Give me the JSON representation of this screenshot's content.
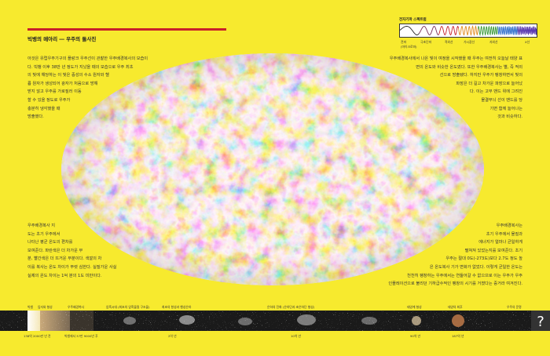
{
  "header": {
    "title": "빅뱅의 메아리 ― 우주의 돌사진"
  },
  "intro": {
    "lines": [
      "아것은 유럽우주기구의 플랑크 우주선이 관찰한 우주배경복사의 모습이",
      "다. 빅뱅 이후 38만 년 정도가 지났을 때의 모습으로 우주 최초",
      "의 빛에 해당하는 이 빛은 중성의 수소 원자와 헬",
      "륨 원자가 생성되어 광자가 처음으로 방해",
      "받지 않고 우주를 가로질러 이동",
      "할 수 있을 정도로 우주가",
      "충분히 냉각했을 때",
      "방출했다."
    ]
  },
  "right_top": {
    "lines": [
      "우주배경복사에서 나온 빛이 여정을 시작했을 때 우주는 여전히 오늘날 태양 표",
      "면의 온도와 비슷한 온도였다. 또한 우주배경복사는 별, 즉 적외",
      "선으로 방출됐다. 하지만 우주가 팽창하면서 빛의",
      "파장은 더 길고 차가운 파장으로 늘어났",
      "다. 이는 고무 밴드 위에 그려진",
      "물결무늬 선이 밴드를 당",
      "기면 함께 늘어나는",
      "것과 비슷하다."
    ]
  },
  "left_bottom": {
    "lines": [
      "우주배경복사 지",
      "도는 초기 우주에서",
      "나타난 평균 온도의 편차를",
      "보여준다. 파란색은 더 차가운 부",
      "분, 빨간색은 더 뜨거운 부분이다. 색깔의 차",
      "이를 복사는 온도 차이가 뚜렷 심한다. 실질가운 사실",
      "실제의 온도 차이는 1억 분의 1도 미만이다."
    ]
  },
  "right_bottom": {
    "lines": [
      "우주배경복사는",
      "초기 우주에서 물질과",
      "에너지가 얼마나 균일하게",
      "펼쳐져 있었는지를 보여준다. 초기",
      "우주는 절대 0도(-273도)보다 2.7도 정도 높",
      "은 온도복사 기가 변화가 없었다. 이렇게 균일한 온도는",
      "천천히 팽창하는 우주에서는 연들어갈 수 없으므로 이는 우주가 우주",
      "인플레이션으로 불리던 기하급수적인 팽창의 시기를 거쳤다는 증거라 여겨진다."
    ]
  },
  "spectrum": {
    "title": "전자기파 스펙트럼",
    "labels": [
      "전파",
      "극초단파",
      "적외선",
      "가시광선",
      "자외선",
      "X선"
    ],
    "sublabel": "(마이크로파)"
  },
  "timeline": {
    "stages": [
      "빅뱅",
      "입자와 형성",
      "우주배경복사",
      "암흑시대 (최초의 암흑물질 구조물)",
      "최초의 항성과 행성은하",
      "은하의 진화 (은하단과 초은하단 형성)",
      "태양계 형성",
      "태양의 최후",
      "우주의 운명"
    ],
    "times": [
      "138억 2000만 년 전",
      "빅뱅에서 37만 9000년 후",
      "2억 년",
      "10억 년",
      "90억 년",
      "187억 년"
    ]
  },
  "colors": {
    "background": "#f7ea2e",
    "rule": "#c8202a",
    "cmb_cold": "#1e3f9c",
    "cmb_mid": "#cde6f2",
    "cmb_hot": "#cf3a1e"
  }
}
